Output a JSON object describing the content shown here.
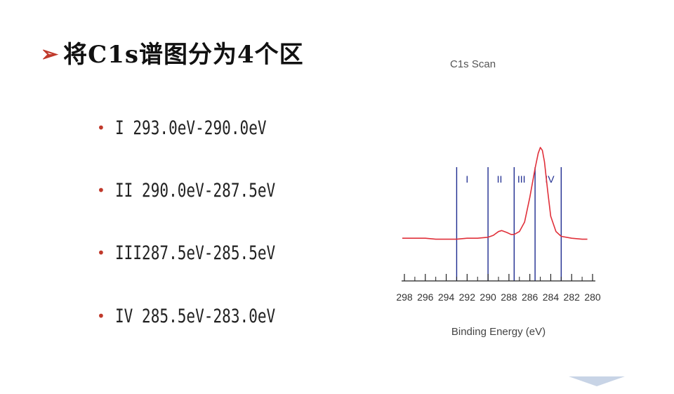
{
  "slide": {
    "title_arrow": "➢",
    "title": "将C1s谱图分为4个区"
  },
  "bullets": [
    {
      "dot": "•",
      "text": "I  293.0eV-290.0eV"
    },
    {
      "dot": "•",
      "text": "II 290.0eV-287.5eV"
    },
    {
      "dot": "•",
      "text": "III287.5eV-285.5eV"
    },
    {
      "dot": "•",
      "text": "IV 285.5eV-283.0eV"
    }
  ],
  "chart_data": {
    "type": "line",
    "title": "C1s Scan",
    "xlabel": "Binding Energy (eV)",
    "ylabel": "",
    "x_reversed": true,
    "xlim": [
      298,
      280
    ],
    "x_tick_labels": [
      "298",
      "296",
      "294",
      "292",
      "290",
      "288",
      "286",
      "284",
      "282",
      "280"
    ],
    "series": [
      {
        "color": "#e0303a",
        "x": [
          298,
          297,
          296,
          295,
          294,
          293,
          292,
          291,
          290,
          289.5,
          289,
          288.7,
          288.2,
          287.8,
          287.5,
          287,
          286.5,
          286,
          285.5,
          285.2,
          285,
          284.8,
          284.6,
          284.3,
          284,
          283.5,
          283,
          282,
          281,
          280.5
        ],
        "y": [
          0.05,
          0.05,
          0.05,
          0.04,
          0.04,
          0.04,
          0.05,
          0.05,
          0.06,
          0.08,
          0.12,
          0.13,
          0.11,
          0.09,
          0.09,
          0.12,
          0.22,
          0.48,
          0.78,
          0.94,
          1.0,
          0.97,
          0.85,
          0.55,
          0.28,
          0.12,
          0.07,
          0.05,
          0.04,
          0.04
        ]
      }
    ],
    "regions": [
      {
        "label": "I",
        "from": 293.0,
        "to": 290.0
      },
      {
        "label": "II",
        "from": 290.0,
        "to": 287.5
      },
      {
        "label": "III",
        "from": 287.5,
        "to": 285.5
      },
      {
        "label": "IV",
        "from": 285.5,
        "to": 283.0
      }
    ],
    "boundaries": [
      293.0,
      290.0,
      287.5,
      285.5,
      283.0
    ],
    "colors": {
      "curve": "#e0303a",
      "boundary": "#1d2b8f",
      "region_label": "#1d2b8f",
      "axis": "#222222"
    }
  }
}
